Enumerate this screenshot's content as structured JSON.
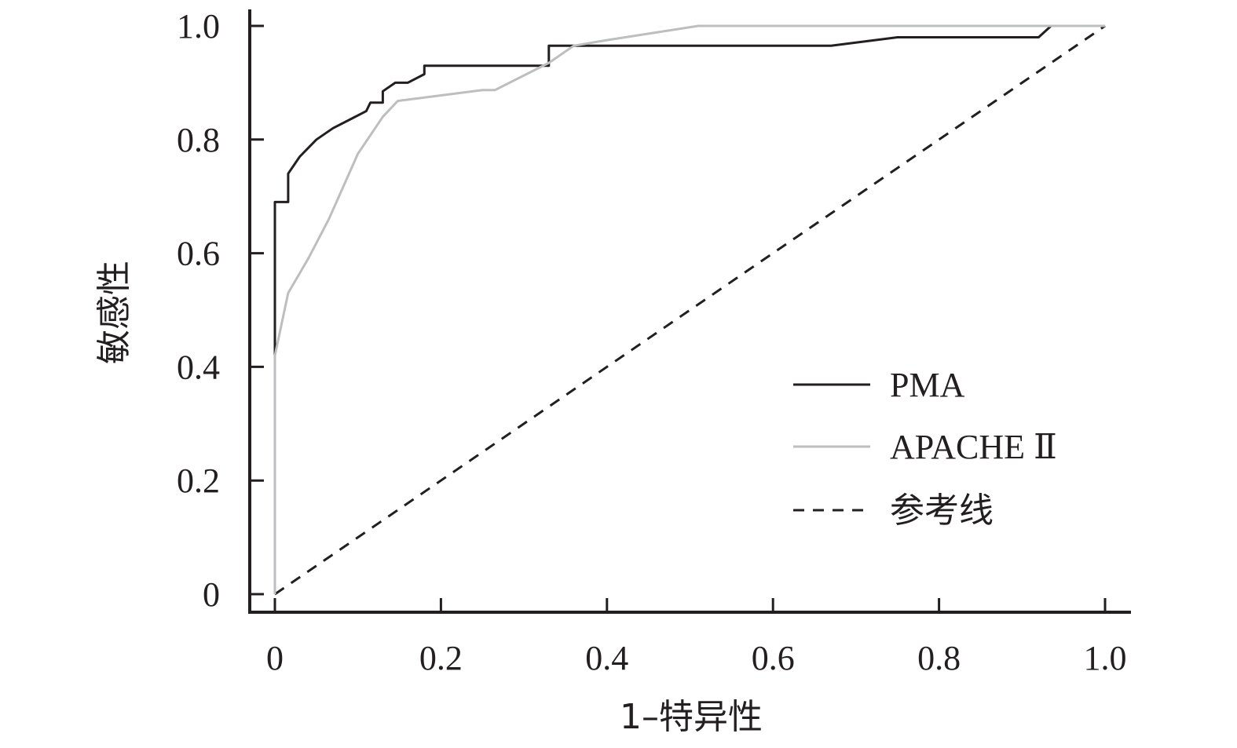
{
  "chart_data": {
    "type": "line",
    "title": "",
    "xlabel": "1–特异性",
    "ylabel": "敏感性",
    "xlim": [
      0,
      1
    ],
    "ylim": [
      0,
      1
    ],
    "x_ticks": [
      {
        "value": 0,
        "label": "0"
      },
      {
        "value": 0.2,
        "label": "0.2"
      },
      {
        "value": 0.4,
        "label": "0.4"
      },
      {
        "value": 0.6,
        "label": "0.6"
      },
      {
        "value": 0.8,
        "label": "0.8"
      },
      {
        "value": 1.0,
        "label": "1.0"
      }
    ],
    "y_ticks": [
      {
        "value": 0,
        "label": "0"
      },
      {
        "value": 0.2,
        "label": "0.2"
      },
      {
        "value": 0.4,
        "label": "0.4"
      },
      {
        "value": 0.6,
        "label": "0.6"
      },
      {
        "value": 0.8,
        "label": "0.8"
      },
      {
        "value": 1.0,
        "label": "1.0"
      }
    ],
    "grid": false,
    "legend_position": "bottom-right",
    "series": [
      {
        "name": "PMA",
        "color": "#231f20",
        "dash": "solid",
        "points": [
          [
            0,
            0
          ],
          [
            0,
            0.42
          ],
          [
            0,
            0.69
          ],
          [
            0.016,
            0.69
          ],
          [
            0.016,
            0.74
          ],
          [
            0.03,
            0.77
          ],
          [
            0.05,
            0.8
          ],
          [
            0.07,
            0.82
          ],
          [
            0.09,
            0.835
          ],
          [
            0.11,
            0.85
          ],
          [
            0.115,
            0.865
          ],
          [
            0.13,
            0.865
          ],
          [
            0.13,
            0.885
          ],
          [
            0.145,
            0.9
          ],
          [
            0.16,
            0.9
          ],
          [
            0.18,
            0.915
          ],
          [
            0.18,
            0.93
          ],
          [
            0.33,
            0.93
          ],
          [
            0.33,
            0.965
          ],
          [
            0.67,
            0.965
          ],
          [
            0.75,
            0.98
          ],
          [
            0.92,
            0.98
          ],
          [
            0.935,
            1.0
          ],
          [
            1.0,
            1.0
          ]
        ]
      },
      {
        "name": "APACHE Ⅱ",
        "color": "#bcbec0",
        "dash": "solid",
        "points": [
          [
            0,
            0
          ],
          [
            0,
            0.42
          ],
          [
            0.016,
            0.53
          ],
          [
            0.04,
            0.59
          ],
          [
            0.065,
            0.66
          ],
          [
            0.1,
            0.775
          ],
          [
            0.13,
            0.84
          ],
          [
            0.148,
            0.868
          ],
          [
            0.25,
            0.887
          ],
          [
            0.265,
            0.887
          ],
          [
            0.33,
            0.935
          ],
          [
            0.36,
            0.965
          ],
          [
            0.4,
            0.975
          ],
          [
            0.51,
            1.0
          ],
          [
            1.0,
            1.0
          ]
        ]
      },
      {
        "name": "参考线",
        "color": "#231f20",
        "dash": "dashed",
        "points": [
          [
            0,
            0
          ],
          [
            1,
            1
          ]
        ]
      }
    ]
  }
}
